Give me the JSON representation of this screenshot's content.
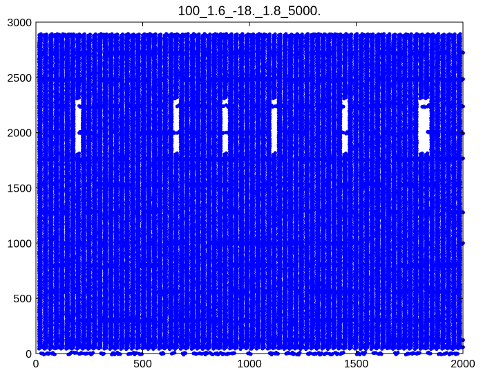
{
  "chart_data": {
    "type": "scatter",
    "title": "100_1.6_-18._1.8_5000.",
    "xlabel": "",
    "ylabel": "",
    "xlim": [
      0,
      2000
    ],
    "ylim": [
      0,
      3000
    ],
    "xticks": [
      "0",
      "500",
      "1000",
      "1500",
      "2000"
    ],
    "yticks": [
      "0",
      "500",
      "1000",
      "1500",
      "2000",
      "2500",
      "3000"
    ],
    "grid": false,
    "legend": "none",
    "marker_color": "#0000ff",
    "series": [
      {
        "description_values": "dense interleaved points",
        "x_range": [
          0,
          2000
        ],
        "y_range": [
          0,
          2880
        ],
        "column_spacing": 25.5,
        "row_values": [
          0,
          60,
          120,
          300,
          560,
          800,
          1000,
          1280,
          1530,
          1760,
          2000,
          2240,
          2480,
          2720,
          2880
        ]
      }
    ]
  }
}
